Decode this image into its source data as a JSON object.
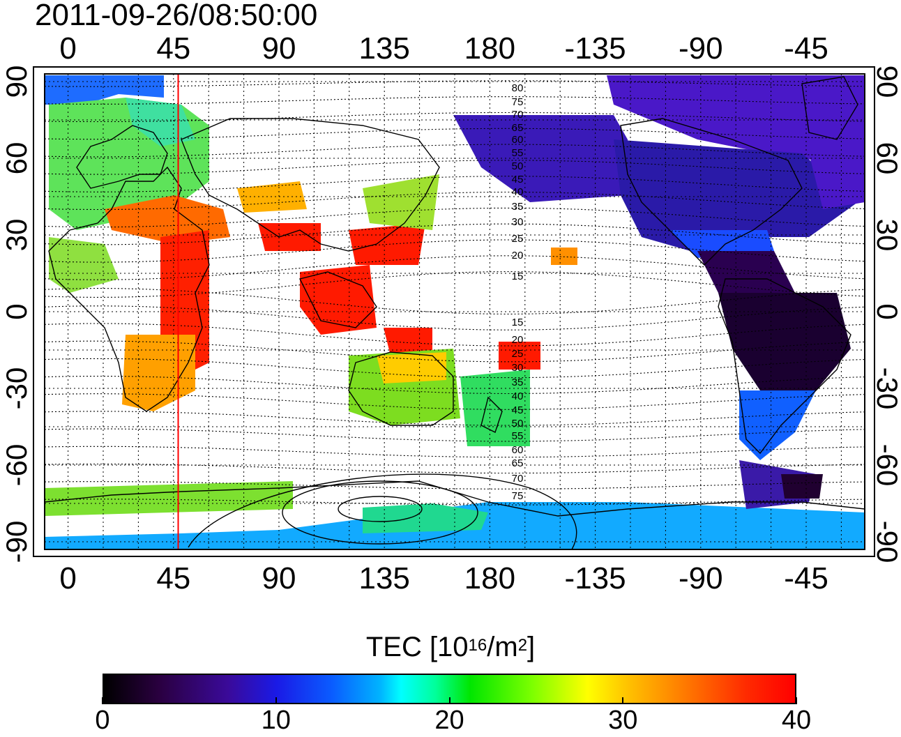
{
  "title": "2011-09-26/08:50:00",
  "lon_ticks_top": [
    "0",
    "45",
    "90",
    "135",
    "180",
    "-135",
    "-90",
    "-45"
  ],
  "lon_ticks_bottom": [
    "0",
    "45",
    "90",
    "135",
    "180",
    "-135",
    "-90",
    "-45"
  ],
  "lat_ticks_left": [
    "90",
    "60",
    "30",
    "0",
    "-30",
    "-60",
    "-90"
  ],
  "lat_ticks_right": [
    "90",
    "60",
    "30",
    "0",
    "-30",
    "-60",
    "-90"
  ],
  "contour_labels": [
    "80",
    "75",
    "70",
    "65",
    "60",
    "55",
    "50",
    "45",
    "40",
    "35",
    "30",
    "25",
    "20",
    "15",
    "15",
    "20",
    "25",
    "30",
    "35",
    "40",
    "45",
    "50",
    "55",
    "60",
    "65",
    "70",
    "75"
  ],
  "colorbar": {
    "title_prefix": "TEC  [10",
    "title_sup1": "16",
    "title_mid": "/m",
    "title_sup2": "2",
    "title_suffix": "]",
    "ticks": [
      "0",
      "10",
      "20",
      "30",
      "40"
    ],
    "range": [
      0,
      40
    ]
  },
  "map_data": {
    "lon_range": [
      -10,
      340
    ],
    "lat_range": [
      -93,
      93
    ],
    "grid_lon_step": 15,
    "grid_lat_step": 15,
    "highlight_meridian_lon": 47,
    "colors": {
      "highlight_line": "#ff0000",
      "grid": "#000000"
    }
  }
}
